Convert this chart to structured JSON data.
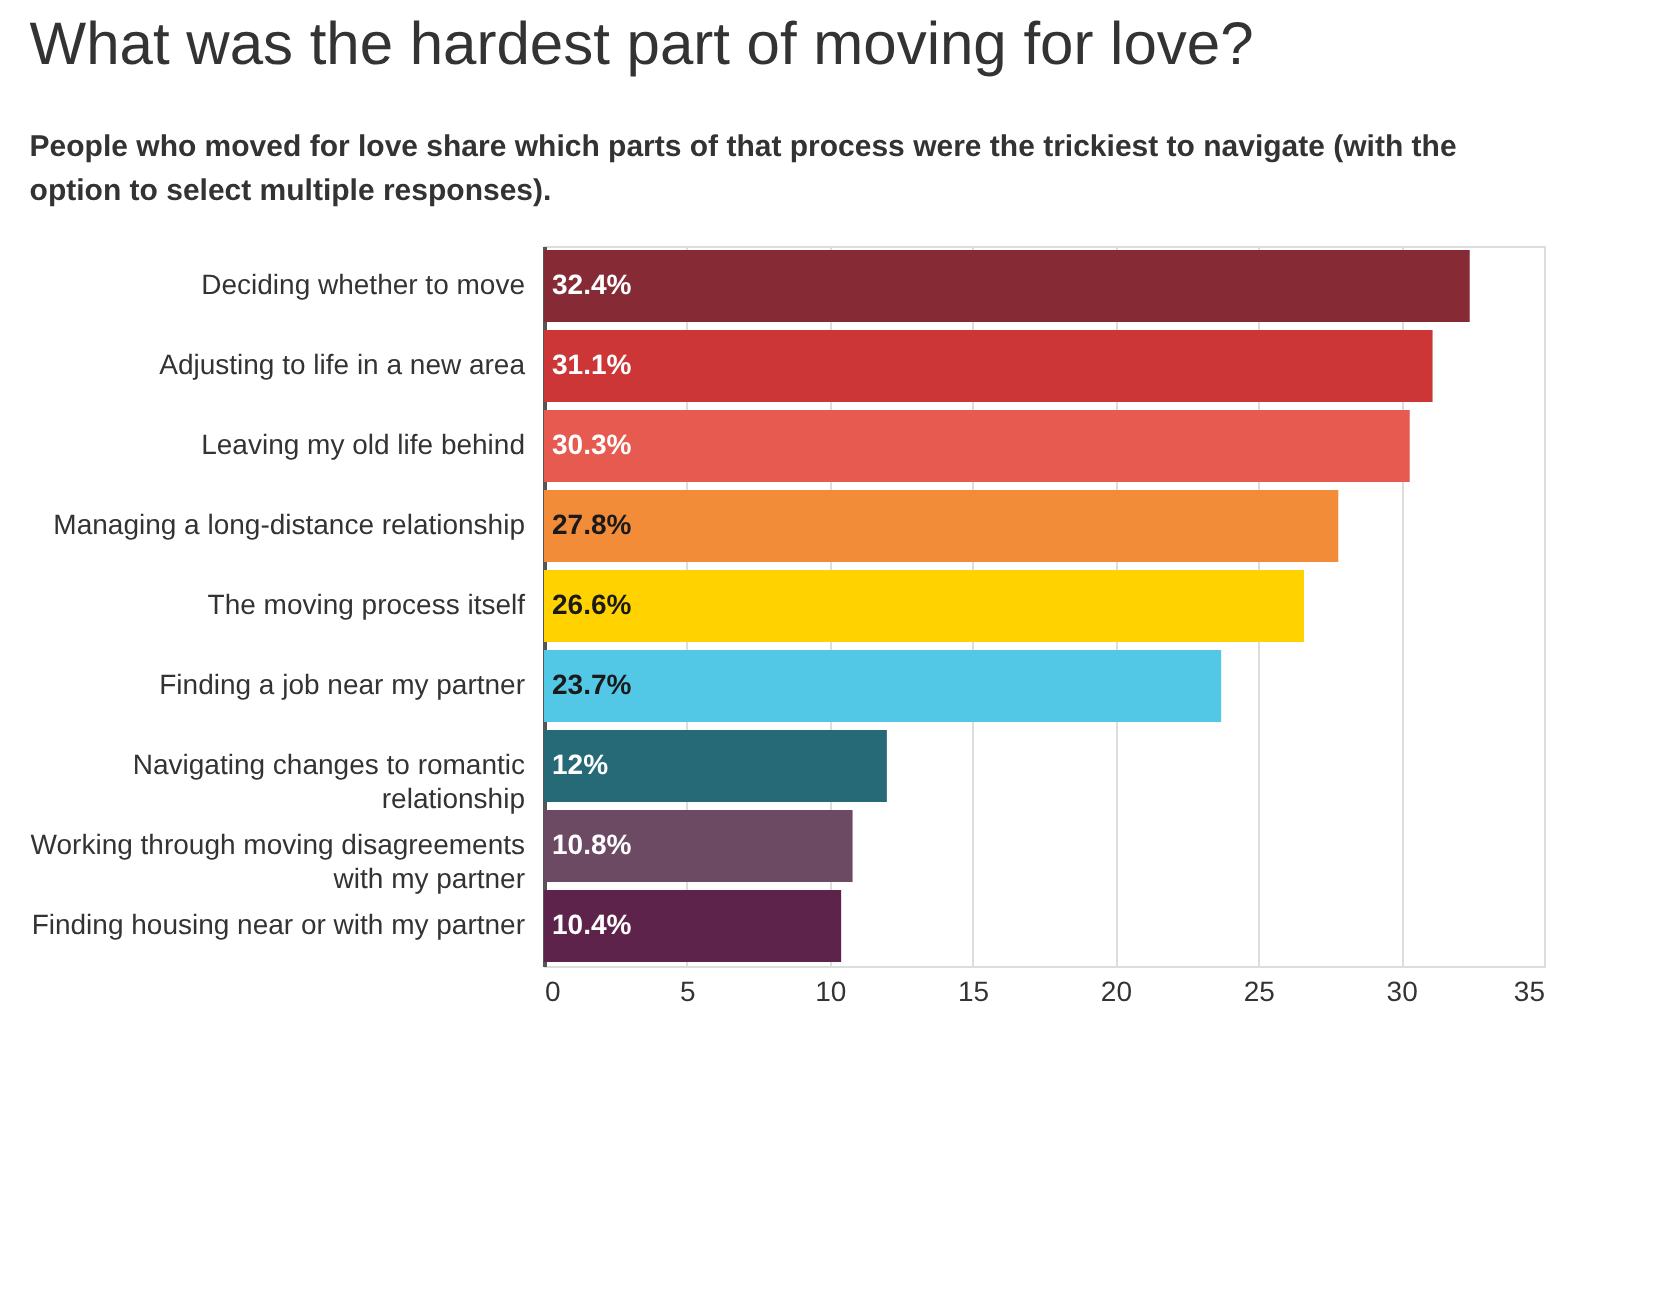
{
  "chart_data": {
    "type": "bar",
    "orientation": "horizontal",
    "title": "What was the hardest part of moving for love?",
    "subtitle": "People who moved for love share which parts of that process were the trickiest to navigate (with the option to select multiple responses).",
    "categories": [
      "Deciding whether to move",
      "Adjusting to life in a new area",
      "Leaving my old life behind",
      "Managing a long-distance relationship",
      "The moving process itself",
      "Finding a job near my partner",
      "Navigating changes to romantic relationship",
      "Working through moving disagreements with my partner",
      "Finding housing near or with my partner"
    ],
    "values": [
      32.4,
      31.1,
      30.3,
      27.8,
      26.6,
      23.7,
      12,
      10.8,
      10.4
    ],
    "value_labels": [
      "32.4%",
      "31.1%",
      "30.3%",
      "27.8%",
      "26.6%",
      "23.7%",
      "12%",
      "10.8%",
      "10.4%"
    ],
    "colors": [
      "#862a35",
      "#cc3636",
      "#e65a50",
      "#f28c38",
      "#ffd200",
      "#52c8e6",
      "#266977",
      "#6c4a64",
      "#5e234a"
    ],
    "xlim": [
      0,
      35
    ],
    "xticks": [
      0,
      5,
      10,
      15,
      20,
      25,
      30,
      35
    ],
    "grid": "x"
  }
}
